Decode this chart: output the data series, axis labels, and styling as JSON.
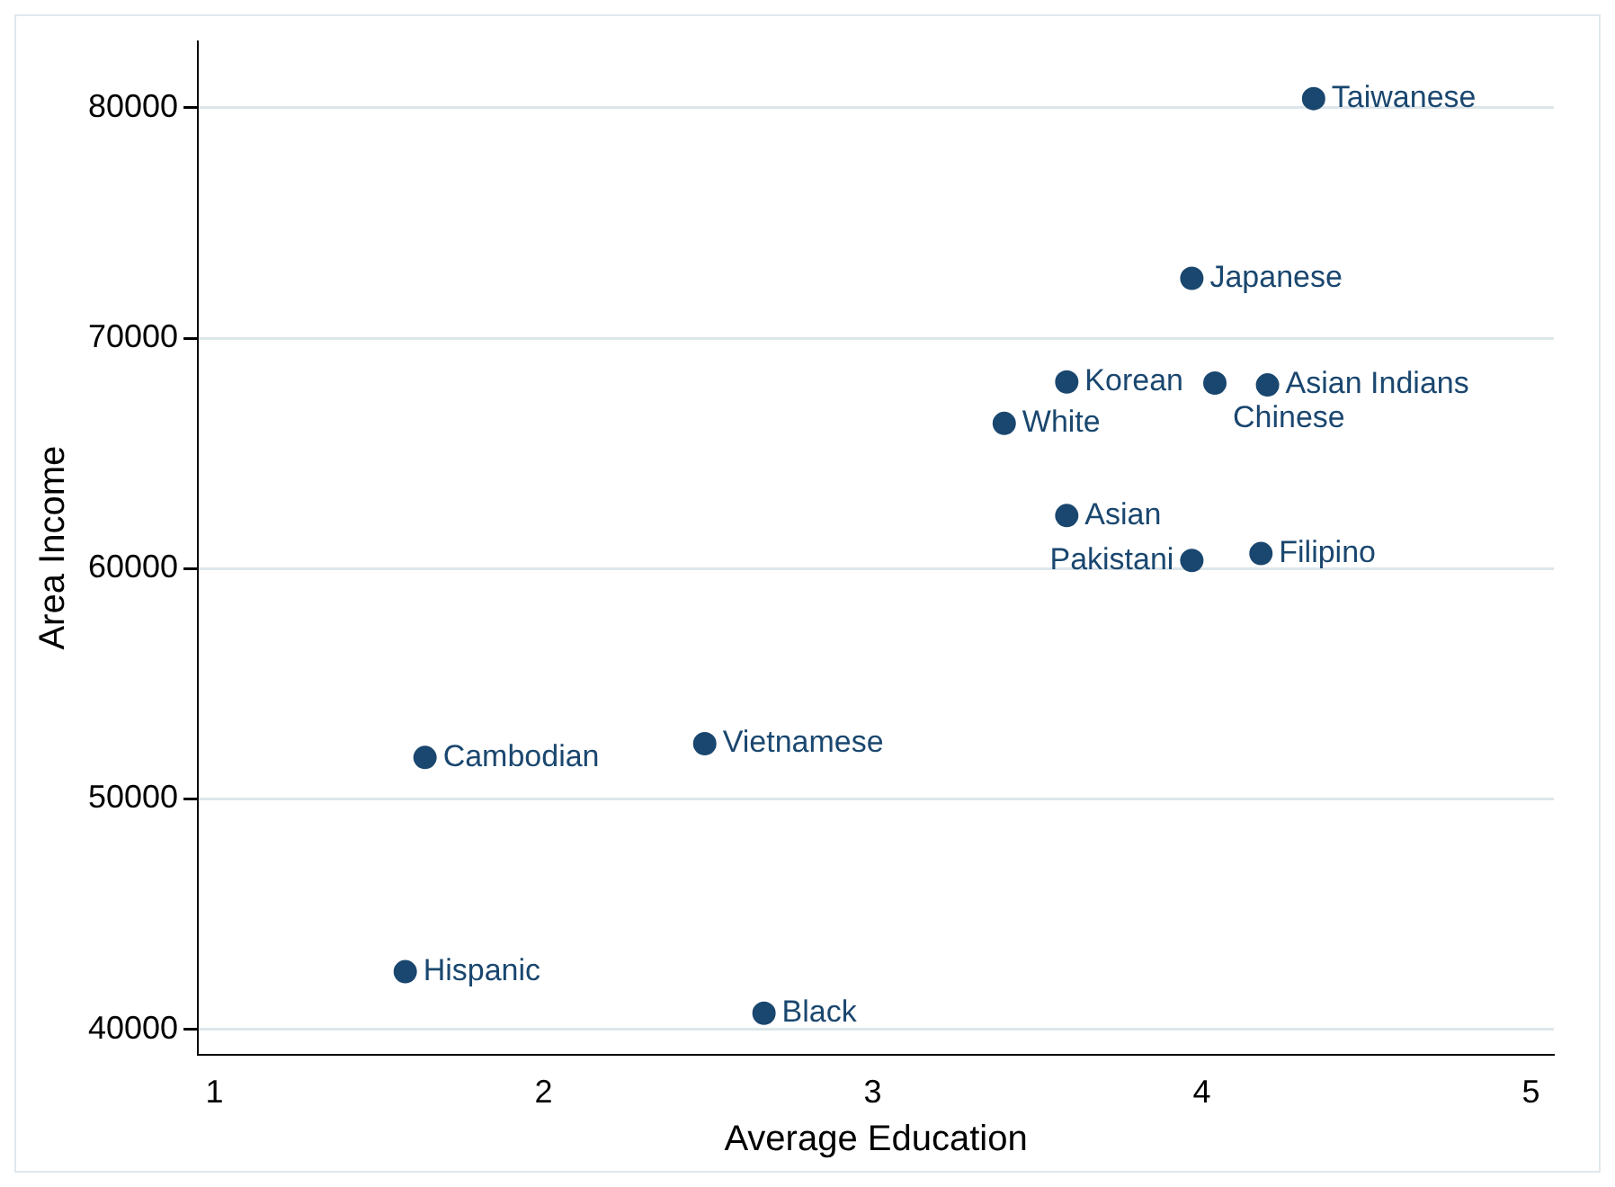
{
  "chart_data": {
    "type": "scatter",
    "xlabel": "Average Education",
    "ylabel": "Area Income",
    "x": [
      4.34,
      3.97,
      3.59,
      4.04,
      4.2,
      3.4,
      3.59,
      3.97,
      4.18,
      2.49,
      1.64,
      1.58,
      2.67
    ],
    "series": [
      {
        "color": "#1a476f",
        "values": [
          80400,
          72600,
          68100,
          68050,
          67970,
          66300,
          62300,
          60350,
          60650,
          52400,
          51800,
          42500,
          40700
        ]
      }
    ],
    "annotations": [
      {
        "text": "Taiwanese",
        "x": 4.34,
        "y": 80400
      },
      {
        "text": "Japanese",
        "x": 3.97,
        "y": 72600
      },
      {
        "text": "Korean",
        "x": 3.59,
        "y": 68100
      },
      {
        "text": "Chinese",
        "x": 4.04,
        "y": 68050
      },
      {
        "text": "Asian Indians",
        "x": 4.2,
        "y": 67970
      },
      {
        "text": "White",
        "x": 3.4,
        "y": 66300
      },
      {
        "text": "Asian",
        "x": 3.59,
        "y": 62300
      },
      {
        "text": "Pakistani",
        "x": 3.97,
        "y": 60350
      },
      {
        "text": "Filipino",
        "x": 4.18,
        "y": 60650
      },
      {
        "text": "Vietnamese",
        "x": 2.49,
        "y": 52400
      },
      {
        "text": "Cambodian",
        "x": 1.64,
        "y": 51800
      },
      {
        "text": "Hispanic",
        "x": 1.58,
        "y": 42500
      },
      {
        "text": "Black",
        "x": 2.67,
        "y": 40700
      }
    ],
    "xlim": [
      0.95,
      5.07
    ],
    "xticks": [
      1,
      2,
      3,
      4,
      5
    ],
    "ylim": [
      38900,
      82900
    ],
    "yticks": [
      40000,
      50000,
      60000,
      70000,
      80000
    ],
    "grid": "y",
    "legend": false,
    "marker": "circle"
  }
}
